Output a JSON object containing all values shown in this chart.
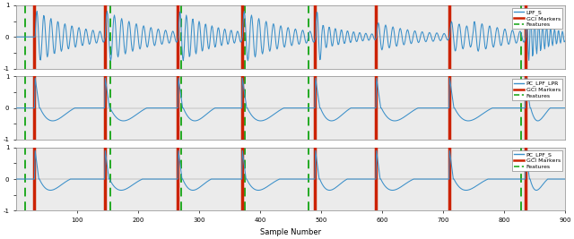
{
  "xlim": [
    0,
    900
  ],
  "xticks": [
    100,
    200,
    300,
    400,
    500,
    600,
    700,
    800,
    900
  ],
  "ylim": [
    -1,
    1
  ],
  "yticks": [
    -1,
    -0.5,
    0,
    0.5,
    1
  ],
  "xlabel": "Sample Number",
  "legend1": [
    "LPF_S",
    "GCI Markers",
    "Features"
  ],
  "legend2": [
    "PC_LPF_LPR",
    "GCI Markers",
    "Features"
  ],
  "legend3": [
    "PC_LPF_S",
    "GCI Markers",
    "Features"
  ],
  "signal_color": "#3a8fc9",
  "gci_color": "#cc2200",
  "feature_color": "#22aa22",
  "bg_color": "#ebebeb",
  "gci_pos": [
    30,
    145,
    265,
    370,
    490,
    590,
    710,
    835
  ],
  "feat_pos": [
    15,
    155,
    270,
    375,
    480,
    590,
    712,
    828
  ],
  "n_samples": 900,
  "figsize": [
    6.4,
    2.67
  ],
  "dpi": 100
}
